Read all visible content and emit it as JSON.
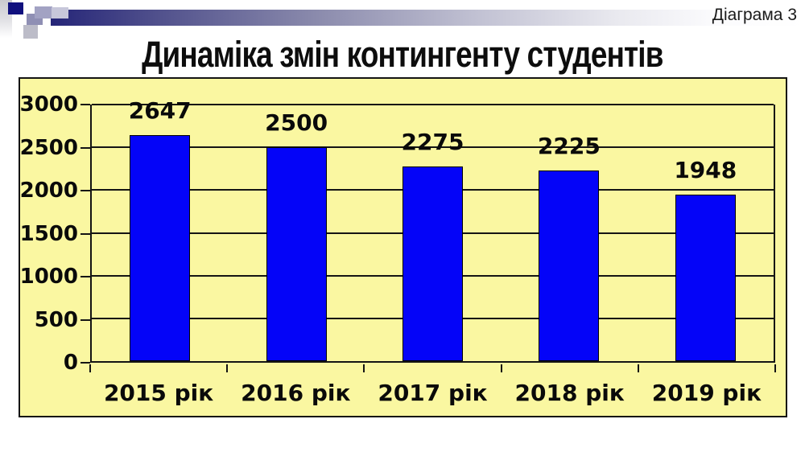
{
  "slide": {
    "corner_label": "Діаграма 3",
    "title": "Динаміка змін контингенту студентів"
  },
  "chart_data": {
    "type": "bar",
    "title": "Динаміка змін контингенту студентів",
    "categories": [
      "2015 рік",
      "2016 рік",
      "2017 рік",
      "2018 рік",
      "2019 рік"
    ],
    "values": [
      2647,
      2500,
      2275,
      2225,
      1948
    ],
    "data_labels": [
      "2647",
      "2500",
      "2275",
      "2225",
      "1948"
    ],
    "xlabel": "",
    "ylabel": "",
    "ylim": [
      0,
      3000
    ],
    "yticks": [
      0,
      500,
      1000,
      1500,
      2000,
      2500,
      3000
    ],
    "grid": true,
    "legend": "none",
    "colors": {
      "plot_bg": "#faf7a1",
      "bar_fill": "#0404f8",
      "bar_border": "#000000",
      "grid": "#141414",
      "text": "#0a0a0a"
    }
  }
}
